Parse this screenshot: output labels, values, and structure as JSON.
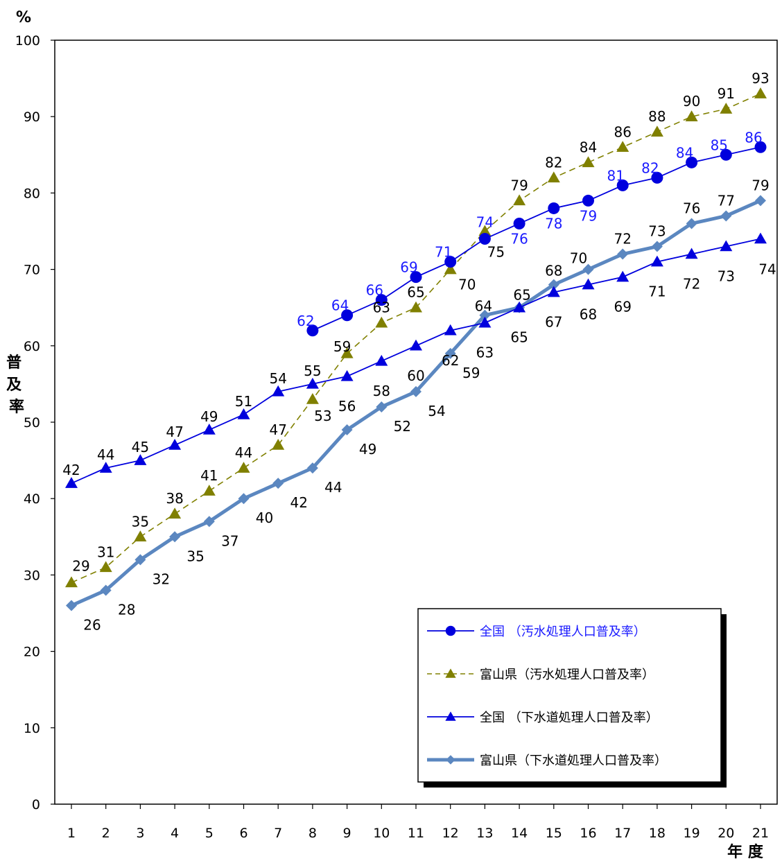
{
  "chart_data": {
    "type": "line",
    "y_unit": "%",
    "ylabel": "普及率",
    "xlabel": "年 度",
    "ylim": [
      0,
      100
    ],
    "y_ticks": [
      0,
      10,
      20,
      30,
      40,
      50,
      60,
      70,
      80,
      90,
      100
    ],
    "x": [
      1,
      2,
      3,
      4,
      5,
      6,
      7,
      8,
      9,
      10,
      11,
      12,
      13,
      14,
      15,
      16,
      17,
      18,
      19,
      20,
      21
    ],
    "grid": false,
    "legend_position": "bottom-right inside plot",
    "series": [
      {
        "name": "全国 （汚水処理人口普及率）",
        "color": "#0000dd",
        "label_color": "#1a1aff",
        "marker": "circle",
        "line": "solid",
        "x": [
          8,
          9,
          10,
          11,
          12,
          13,
          14,
          15,
          16,
          17,
          18,
          19,
          20,
          21
        ],
        "values": [
          62,
          64,
          66,
          69,
          71,
          74,
          76,
          78,
          79,
          81,
          82,
          84,
          85,
          86
        ]
      },
      {
        "name": "富山県（汚水処理人口普及率）",
        "color": "#808000",
        "label_color": "#000000",
        "marker": "triangle",
        "line": "dashed",
        "x": [
          1,
          2,
          3,
          4,
          5,
          6,
          7,
          8,
          9,
          10,
          11,
          12,
          13,
          14,
          15,
          16,
          17,
          18,
          19,
          20,
          21
        ],
        "values": [
          29,
          31,
          35,
          38,
          41,
          44,
          47,
          53,
          59,
          63,
          65,
          70,
          75,
          79,
          82,
          84,
          86,
          88,
          90,
          91,
          93
        ]
      },
      {
        "name": "全国 （下水道処理人口普及率）",
        "color": "#0000dd",
        "label_color": "#000000",
        "marker": "triangle",
        "line": "solid",
        "x": [
          1,
          2,
          3,
          4,
          5,
          6,
          7,
          8,
          9,
          10,
          11,
          12,
          13,
          14,
          15,
          16,
          17,
          18,
          19,
          20,
          21
        ],
        "values": [
          42,
          44,
          45,
          47,
          49,
          51,
          54,
          55,
          56,
          58,
          60,
          62,
          63,
          65,
          67,
          68,
          69,
          71,
          72,
          73,
          74
        ]
      },
      {
        "name": "富山県（下水道処理人口普及率）",
        "color": "#5b87c0",
        "label_color": "#000000",
        "marker": "diamond",
        "line": "thick",
        "x": [
          1,
          2,
          3,
          4,
          5,
          6,
          7,
          8,
          9,
          10,
          11,
          12,
          13,
          14,
          15,
          16,
          17,
          18,
          19,
          20,
          21
        ],
        "values": [
          26,
          28,
          32,
          35,
          37,
          40,
          42,
          44,
          49,
          52,
          54,
          59,
          64,
          65,
          68,
          70,
          72,
          73,
          76,
          77,
          79
        ]
      }
    ]
  }
}
